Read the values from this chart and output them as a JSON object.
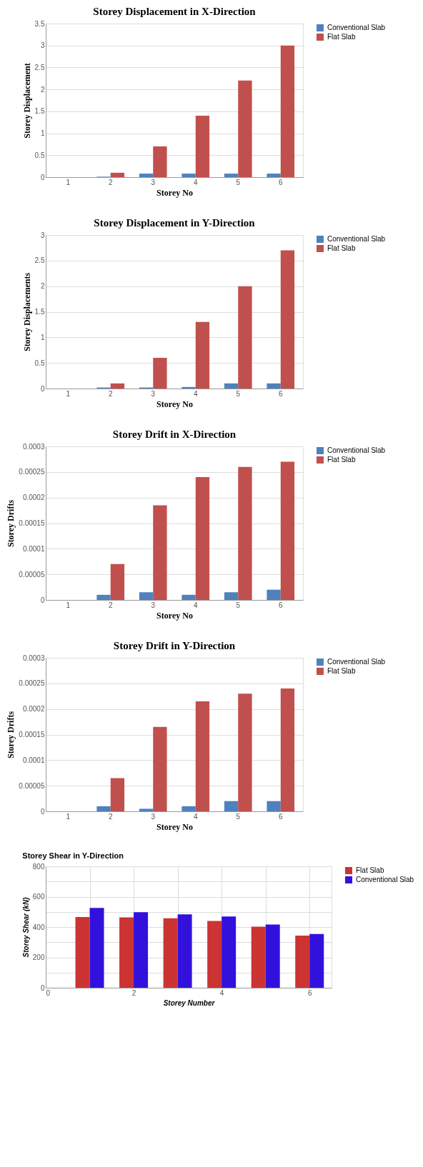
{
  "chart_data": [
    {
      "type": "bar",
      "title": "Storey Displacement in X-Direction",
      "xlabel": "Storey No",
      "ylabel": "Storey Displacement",
      "categories": [
        "1",
        "2",
        "3",
        "4",
        "5",
        "6"
      ],
      "ylim": [
        0,
        3.5
      ],
      "yticks": [
        0,
        0.5,
        1,
        1.5,
        2,
        2.5,
        3,
        3.5
      ],
      "grid": "y",
      "legend": "right",
      "series": [
        {
          "name": "Conventional Slab",
          "color": "#4f81bd",
          "values": [
            0,
            0.01,
            0.08,
            0.08,
            0.08,
            0.08
          ]
        },
        {
          "name": "Flat Slab",
          "color": "#c0504d",
          "values": [
            0,
            0.1,
            0.7,
            1.4,
            2.2,
            3.0
          ]
        }
      ]
    },
    {
      "type": "bar",
      "title": "Storey Displacement in Y-Direction",
      "xlabel": "Storey No",
      "ylabel": "Storey Displacements",
      "categories": [
        "1",
        "2",
        "3",
        "4",
        "5",
        "6"
      ],
      "ylim": [
        0,
        3
      ],
      "yticks": [
        0,
        0.5,
        1,
        1.5,
        2,
        2.5,
        3
      ],
      "grid": "y",
      "legend": "right",
      "series": [
        {
          "name": "Conventional Slab",
          "color": "#4f81bd",
          "values": [
            0,
            0.02,
            0.02,
            0.03,
            0.1,
            0.1
          ]
        },
        {
          "name": "Flat Slab",
          "color": "#c0504d",
          "values": [
            0,
            0.1,
            0.6,
            1.3,
            2.0,
            2.7
          ]
        }
      ]
    },
    {
      "type": "bar",
      "title": "Storey Drift in X-Direction",
      "xlabel": "Storey No",
      "ylabel": "Storey Drifts",
      "categories": [
        "1",
        "2",
        "3",
        "4",
        "5",
        "6"
      ],
      "ylim": [
        0,
        0.0003
      ],
      "yticks": [
        0,
        {
          "value": 5e-05,
          "label": "0.00005"
        },
        0.0001,
        0.00015,
        0.0002,
        0.00025,
        0.0003
      ],
      "grid": "y",
      "legend": "right",
      "series": [
        {
          "name": "Conventional Slab",
          "color": "#4f81bd",
          "values": [
            0,
            1e-05,
            1.5e-05,
            1e-05,
            1.5e-05,
            2e-05
          ]
        },
        {
          "name": "Flat Slab",
          "color": "#c0504d",
          "values": [
            0,
            7e-05,
            0.000185,
            0.00024,
            0.00026,
            0.00027
          ]
        }
      ]
    },
    {
      "type": "bar",
      "title": "Storey Drift in Y-Direction",
      "xlabel": "Storey No",
      "ylabel": "Storey Drifts",
      "categories": [
        "1",
        "2",
        "3",
        "4",
        "5",
        "6"
      ],
      "ylim": [
        0,
        0.0003
      ],
      "yticks": [
        0,
        {
          "value": 5e-05,
          "label": "0.00005"
        },
        0.0001,
        0.00015,
        0.0002,
        0.00025,
        0.0003
      ],
      "grid": "y",
      "legend": "right",
      "series": [
        {
          "name": "Conventional Slab",
          "color": "#4f81bd",
          "values": [
            0,
            1e-05,
            5e-06,
            1e-05,
            2e-05,
            2e-05
          ]
        },
        {
          "name": "Flat Slab",
          "color": "#c0504d",
          "values": [
            0,
            6.5e-05,
            0.000165,
            0.000215,
            0.00023,
            0.00024
          ]
        }
      ]
    },
    {
      "type": "bar",
      "title": "Storey Shear in Y-Direction",
      "xlabel": "Storey Number",
      "ylabel": "Storey Shear (kN)",
      "x": [
        1,
        2,
        3,
        4,
        5,
        6
      ],
      "xlim": [
        0,
        6.5
      ],
      "xticks": [
        0,
        {
          "value": 1,
          "label": null
        },
        2,
        {
          "value": 3,
          "label": null
        },
        4,
        {
          "value": 5,
          "label": null
        },
        6
      ],
      "ylim": [
        0,
        800
      ],
      "yticks": [
        0,
        {
          "value": 100,
          "label": null
        },
        200,
        {
          "value": 300,
          "label": null
        },
        400,
        {
          "value": 500,
          "label": null
        },
        600,
        {
          "value": 700,
          "label": null
        },
        800
      ],
      "grid": true,
      "legend": "top right",
      "series": [
        {
          "name": "Flat Slab",
          "color": "#cc3333",
          "values": [
            466,
            464,
            458,
            440,
            402,
            344
          ]
        },
        {
          "name": "Conventional Slab",
          "color": "#3311dd",
          "values": [
            526,
            498,
            483,
            469,
            416,
            354
          ]
        }
      ]
    }
  ]
}
